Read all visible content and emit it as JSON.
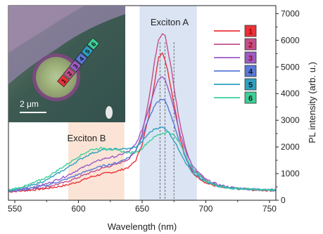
{
  "chart_data": {
    "type": "line",
    "title": "",
    "xlabel": "Wavelength (nm)",
    "ylabel": "PL intensity (arb. u.)",
    "xlim": [
      545,
      755
    ],
    "ylim": [
      0,
      7300
    ],
    "xticks": [
      550,
      600,
      650,
      700,
      750
    ],
    "yticks": [
      0,
      1000,
      2000,
      3000,
      4000,
      5000,
      6000,
      7000
    ],
    "grid": false,
    "legend_position": "top-right",
    "regions": [
      {
        "label": "Exciton A",
        "x_start": 648,
        "x_end": 693,
        "color": "#dbe4f3"
      },
      {
        "label": "Exciton B",
        "x_start": 592,
        "x_end": 636,
        "color": "#fbe4d6"
      }
    ],
    "reference_lines": [
      664,
      668,
      675
    ],
    "x": [
      545,
      560,
      575,
      590,
      600,
      610,
      620,
      630,
      640,
      645,
      650,
      655,
      660,
      663,
      666,
      668,
      670,
      673,
      676,
      680,
      685,
      690,
      700,
      710,
      720,
      735,
      755
    ],
    "series": [
      {
        "name": "1",
        "color": "#e8323a",
        "values": [
          320,
          370,
          440,
          560,
          700,
          880,
          1000,
          1080,
          1250,
          1500,
          2100,
          3100,
          4500,
          5350,
          5550,
          5250,
          4900,
          4100,
          3400,
          2300,
          1500,
          1000,
          650,
          500,
          440,
          390,
          360
        ]
      },
      {
        "name": "2",
        "color": "#c0508c",
        "values": [
          330,
          400,
          500,
          680,
          860,
          1050,
          1220,
          1350,
          1560,
          1850,
          2500,
          3700,
          5300,
          6050,
          6250,
          6150,
          5700,
          4900,
          3900,
          2800,
          1800,
          1200,
          760,
          560,
          470,
          410,
          380
        ]
      },
      {
        "name": "3",
        "color": "#9a5cc6",
        "values": [
          350,
          450,
          620,
          900,
          1150,
          1380,
          1560,
          1650,
          1850,
          2100,
          2650,
          3400,
          4200,
          4550,
          4650,
          4550,
          4250,
          3800,
          3200,
          2450,
          1750,
          1250,
          780,
          580,
          480,
          420,
          390
        ]
      },
      {
        "name": "4",
        "color": "#5a78d8",
        "values": [
          340,
          420,
          560,
          780,
          970,
          1160,
          1300,
          1400,
          1620,
          1880,
          2400,
          3050,
          3550,
          3720,
          3800,
          3720,
          3500,
          3150,
          2700,
          2100,
          1500,
          1100,
          720,
          550,
          460,
          410,
          380
        ]
      },
      {
        "name": "5",
        "color": "#2ea0c0",
        "values": [
          360,
          500,
          760,
          1180,
          1500,
          1760,
          1900,
          1920,
          1930,
          2000,
          2200,
          2500,
          2680,
          2720,
          2730,
          2700,
          2600,
          2400,
          2150,
          1800,
          1350,
          1000,
          680,
          530,
          450,
          410,
          380
        ]
      },
      {
        "name": "6",
        "color": "#3ccf98",
        "values": [
          380,
          560,
          860,
          1320,
          1640,
          1900,
          1960,
          1870,
          1780,
          1800,
          1950,
          2200,
          2380,
          2470,
          2510,
          2530,
          2550,
          2500,
          2380,
          2100,
          1600,
          1150,
          720,
          540,
          450,
          410,
          380
        ]
      }
    ]
  },
  "inset": {
    "scale_bar_label": "2 μm",
    "marker_labels": [
      "1",
      "2",
      "3",
      "4",
      "5",
      "6"
    ]
  }
}
